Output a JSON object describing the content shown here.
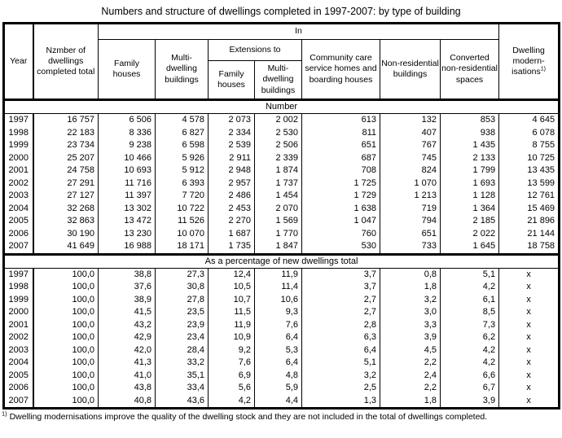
{
  "title": "Numbers and structure of dwellings completed in 1997-2007: by type of building",
  "table": {
    "header": {
      "year": "Year",
      "total": "Nzmber of dwellings completed total",
      "in_group": "In",
      "family_houses": "Family houses",
      "multi_dwelling": "Multi-dwelling buildings",
      "extensions": "Extensions to",
      "ext_family": "Family houses",
      "ext_multi": "Multi-dwelling buildings",
      "community": "Community care service homes and boarding houses",
      "non_residential": "Non-residential buildings",
      "converted": "Converted non-residential spaces",
      "modernisations": "Dwelling modern-isations",
      "modernisations_sup": "1)"
    },
    "sections": [
      {
        "label": "Number",
        "rows": [
          [
            "1997",
            "16 757",
            "6 506",
            "4 578",
            "2 073",
            "2 002",
            "613",
            "132",
            "853",
            "4 645"
          ],
          [
            "1998",
            "22 183",
            "8 336",
            "6 827",
            "2 334",
            "2 530",
            "811",
            "407",
            "938",
            "6 078"
          ],
          [
            "1999",
            "23 734",
            "9 238",
            "6 598",
            "2 539",
            "2 506",
            "651",
            "767",
            "1 435",
            "8 755"
          ],
          [
            "2000",
            "25 207",
            "10 466",
            "5 926",
            "2 911",
            "2 339",
            "687",
            "745",
            "2 133",
            "10 725"
          ],
          [
            "2001",
            "24 758",
            "10 693",
            "5 912",
            "2 948",
            "1 874",
            "708",
            "824",
            "1 799",
            "13 435"
          ],
          [
            "2002",
            "27 291",
            "11 716",
            "6 393",
            "2 957",
            "1 737",
            "1 725",
            "1 070",
            "1 693",
            "13 599"
          ],
          [
            "2003",
            "27 127",
            "11 397",
            "7 720",
            "2 486",
            "1 454",
            "1 729",
            "1 213",
            "1 128",
            "12 761"
          ],
          [
            "2004",
            "32 268",
            "13 302",
            "10 722",
            "2 453",
            "2 070",
            "1 638",
            "719",
            "1 364",
            "15 469"
          ],
          [
            "2005",
            "32 863",
            "13 472",
            "11 526",
            "2 270",
            "1 569",
            "1 047",
            "794",
            "2 185",
            "21 896"
          ],
          [
            "2006",
            "30 190",
            "13 230",
            "10 070",
            "1 687",
            "1 770",
            "760",
            "651",
            "2 022",
            "21 144"
          ],
          [
            "2007",
            "41 649",
            "16 988",
            "18 171",
            "1 735",
            "1 847",
            "530",
            "733",
            "1 645",
            "18 758"
          ]
        ]
      },
      {
        "label": "As a percentage of new dwellings total",
        "rows": [
          [
            "1997",
            "100,0",
            "38,8",
            "27,3",
            "12,4",
            "11,9",
            "3,7",
            "0,8",
            "5,1",
            "x"
          ],
          [
            "1998",
            "100,0",
            "37,6",
            "30,8",
            "10,5",
            "11,4",
            "3,7",
            "1,8",
            "4,2",
            "x"
          ],
          [
            "1999",
            "100,0",
            "38,9",
            "27,8",
            "10,7",
            "10,6",
            "2,7",
            "3,2",
            "6,1",
            "x"
          ],
          [
            "2000",
            "100,0",
            "41,5",
            "23,5",
            "11,5",
            "9,3",
            "2,7",
            "3,0",
            "8,5",
            "x"
          ],
          [
            "2001",
            "100,0",
            "43,2",
            "23,9",
            "11,9",
            "7,6",
            "2,8",
            "3,3",
            "7,3",
            "x"
          ],
          [
            "2002",
            "100,0",
            "42,9",
            "23,4",
            "10,9",
            "6,4",
            "6,3",
            "3,9",
            "6,2",
            "x"
          ],
          [
            "2003",
            "100,0",
            "42,0",
            "28,4",
            "9,2",
            "5,3",
            "6,4",
            "4,5",
            "4,2",
            "x"
          ],
          [
            "2004",
            "100,0",
            "41,3",
            "33,2",
            "7,6",
            "6,4",
            "5,1",
            "2,2",
            "4,2",
            "x"
          ],
          [
            "2005",
            "100,0",
            "41,0",
            "35,1",
            "6,9",
            "4,8",
            "3,2",
            "2,4",
            "6,6",
            "x"
          ],
          [
            "2006",
            "100,0",
            "43,8",
            "33,4",
            "5,6",
            "5,9",
            "2,5",
            "2,2",
            "6,7",
            "x"
          ],
          [
            "2007",
            "100,0",
            "40,8",
            "43,6",
            "4,2",
            "4,4",
            "1,3",
            "1,8",
            "3,9",
            "x"
          ]
        ]
      }
    ]
  },
  "footnote": {
    "sup": "1)",
    "text": "Dwelling modernisations improve the quality of the dwelling stock and they are not included in the total of dwellings completed."
  }
}
